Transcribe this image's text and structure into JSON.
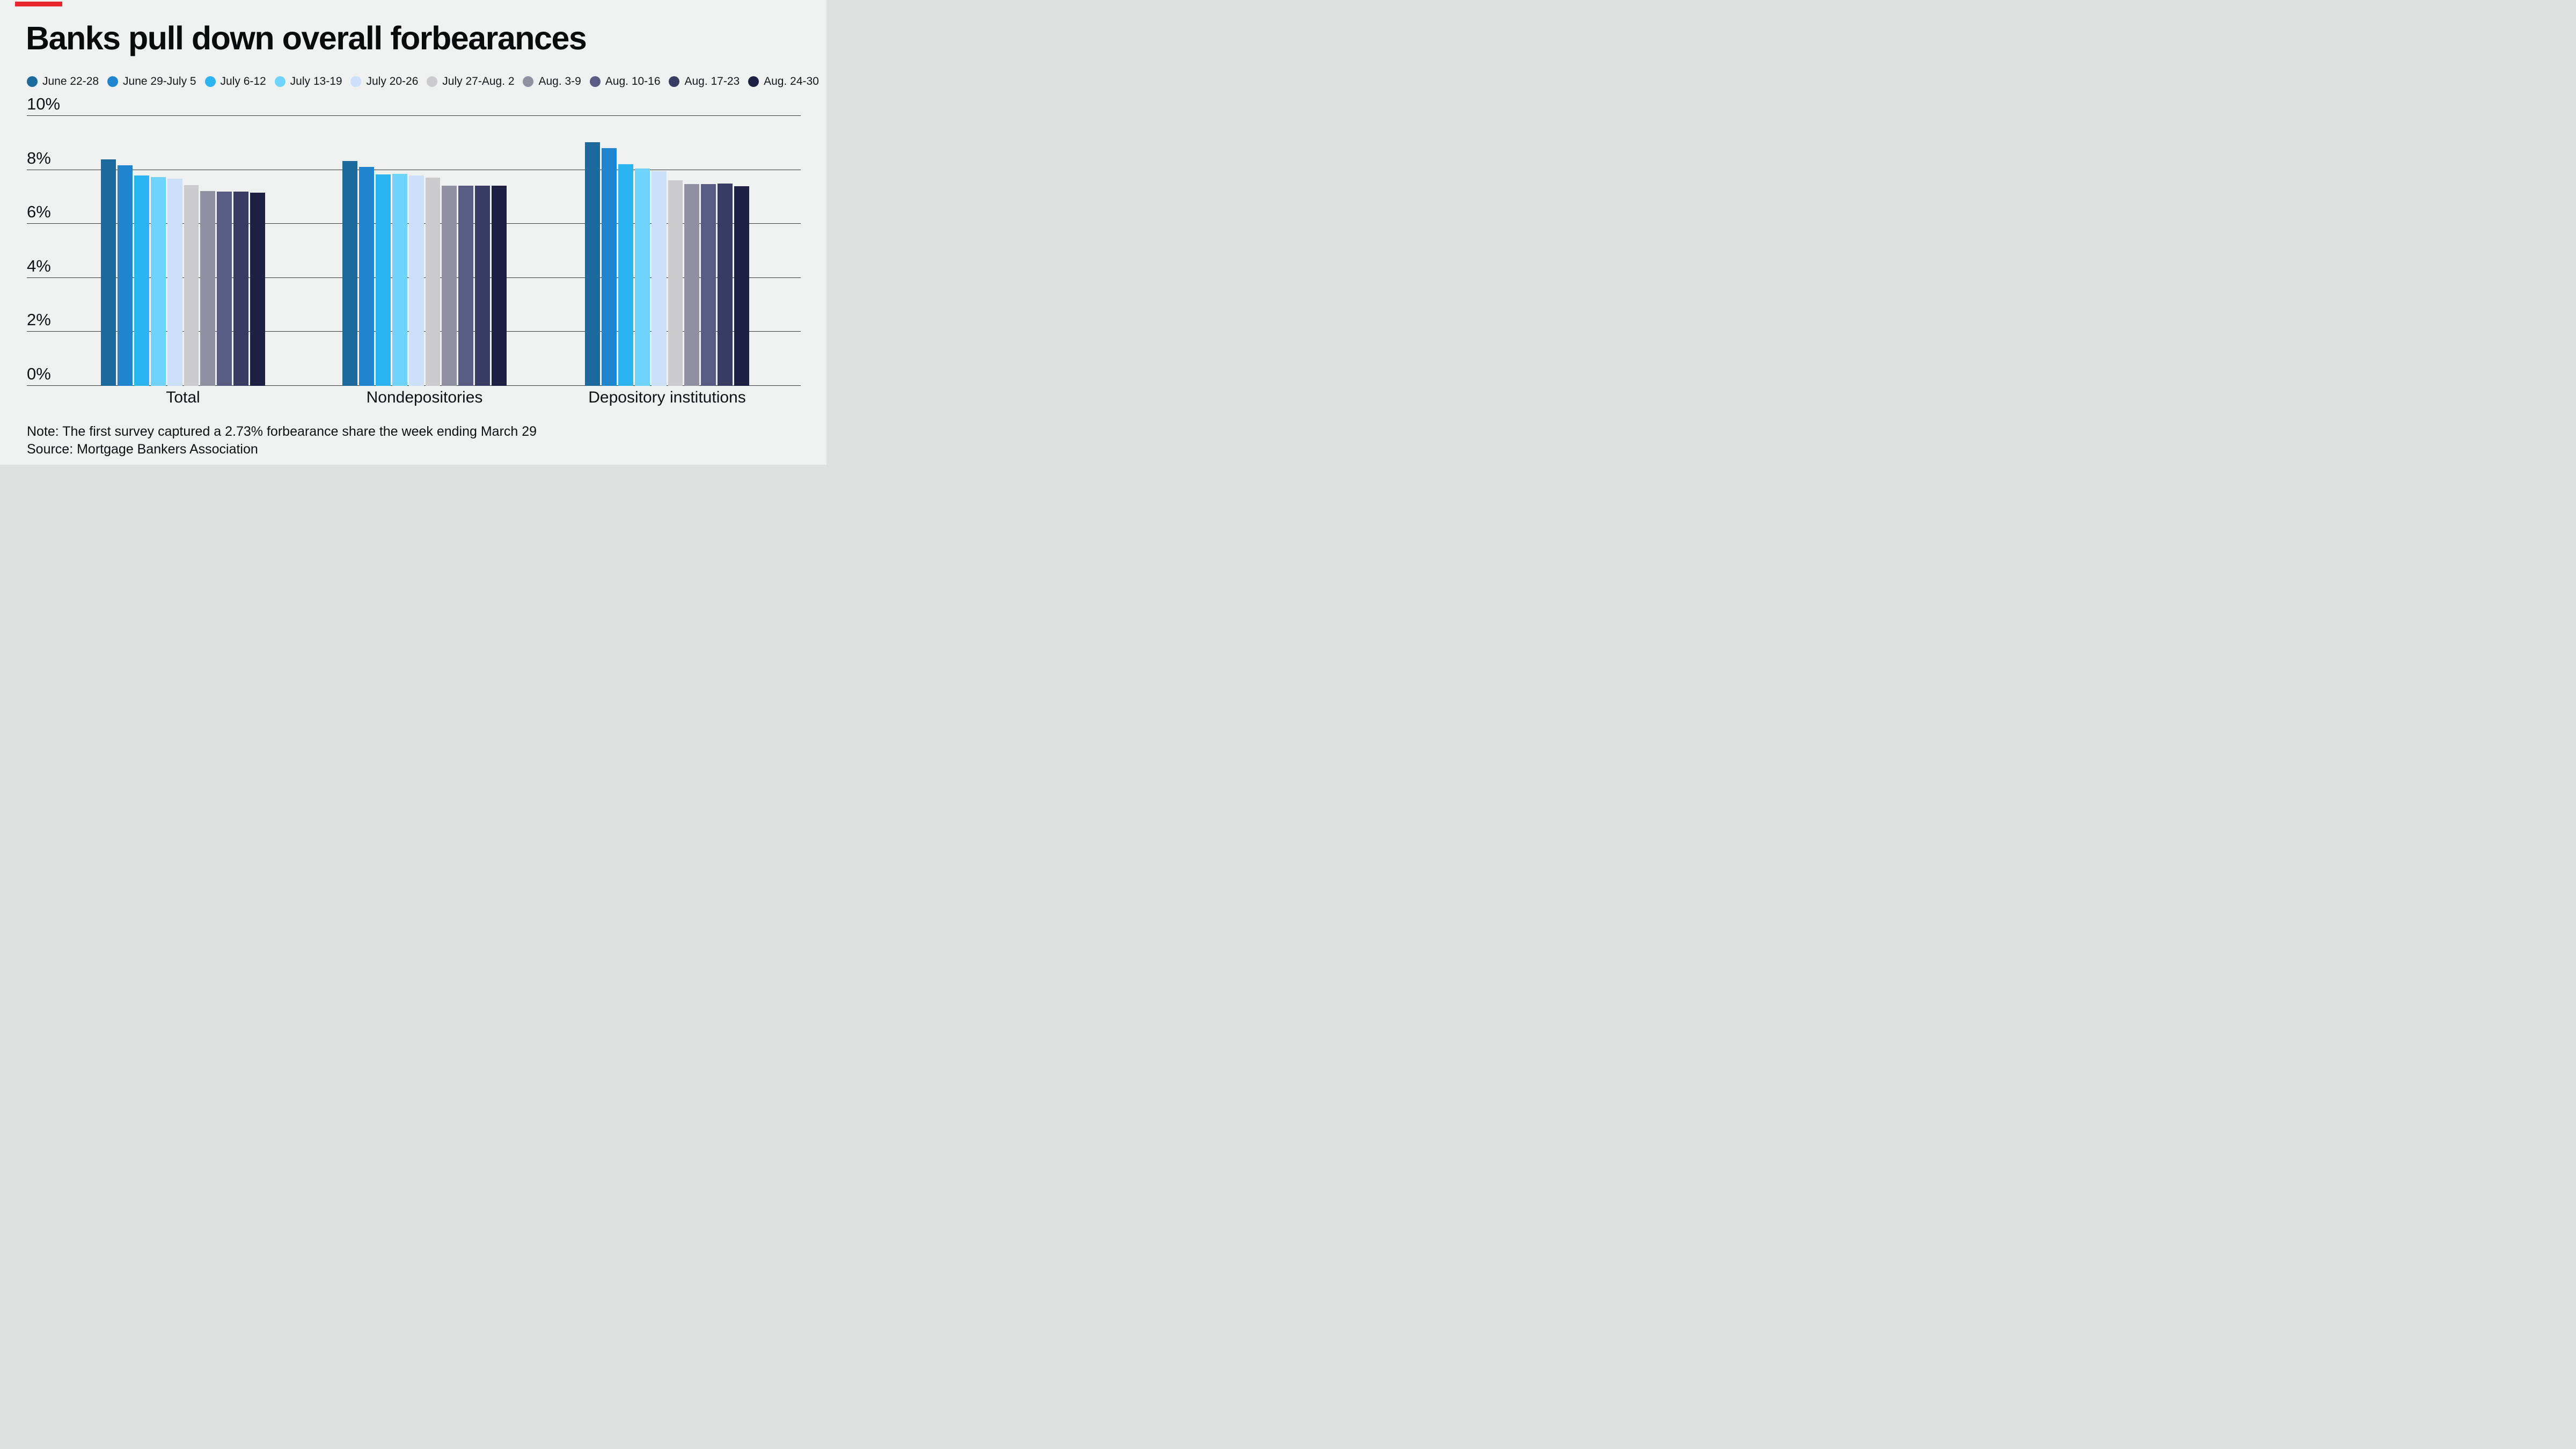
{
  "title": "Banks pull down overall forbearances",
  "accent_color": "#e8262d",
  "background_color": "#eff1f0",
  "note": "Note: The first survey captured a 2.73% forbearance share the week ending March 29",
  "source": "Source: Mortgage Bankers Association",
  "chart_data": {
    "type": "bar",
    "categories": [
      "Total",
      "Nondepositories",
      "Depository institutions"
    ],
    "series": [
      {
        "name": "June 22-28",
        "color": "#1d689c",
        "values": [
          8.39,
          8.33,
          9.03
        ]
      },
      {
        "name": "June 29-July 5",
        "color": "#1f85cf",
        "values": [
          8.18,
          8.11,
          8.8
        ]
      },
      {
        "name": "July 6-12",
        "color": "#2ab4f0",
        "values": [
          7.8,
          7.83,
          8.22
        ]
      },
      {
        "name": "July 13-19",
        "color": "#6fd3fb",
        "values": [
          7.74,
          7.85,
          8.05
        ]
      },
      {
        "name": "July 20-26",
        "color": "#ccdff8",
        "values": [
          7.67,
          7.79,
          7.95
        ]
      },
      {
        "name": "July 27-Aug. 2",
        "color": "#cbcbce",
        "values": [
          7.44,
          7.71,
          7.61
        ]
      },
      {
        "name": "Aug. 3-9",
        "color": "#8f90a1",
        "values": [
          7.21,
          7.41,
          7.48
        ]
      },
      {
        "name": "Aug. 10-16",
        "color": "#595c82",
        "values": [
          7.2,
          7.42,
          7.47
        ]
      },
      {
        "name": "Aug. 17-23",
        "color": "#383c62",
        "values": [
          7.2,
          7.41,
          7.5
        ]
      },
      {
        "name": "Aug. 24-30",
        "color": "#1e2143",
        "values": [
          7.16,
          7.41,
          7.39
        ]
      }
    ],
    "ylim": [
      0,
      10
    ],
    "yticks": [
      0,
      2,
      4,
      6,
      8,
      10
    ],
    "ytick_labels": [
      "0%",
      "2%",
      "4%",
      "6%",
      "8%",
      "10%"
    ],
    "grid": true,
    "legend_position": "top"
  },
  "layout": {
    "group_lefts": [
      138,
      588,
      1040
    ],
    "group_width": 306
  }
}
